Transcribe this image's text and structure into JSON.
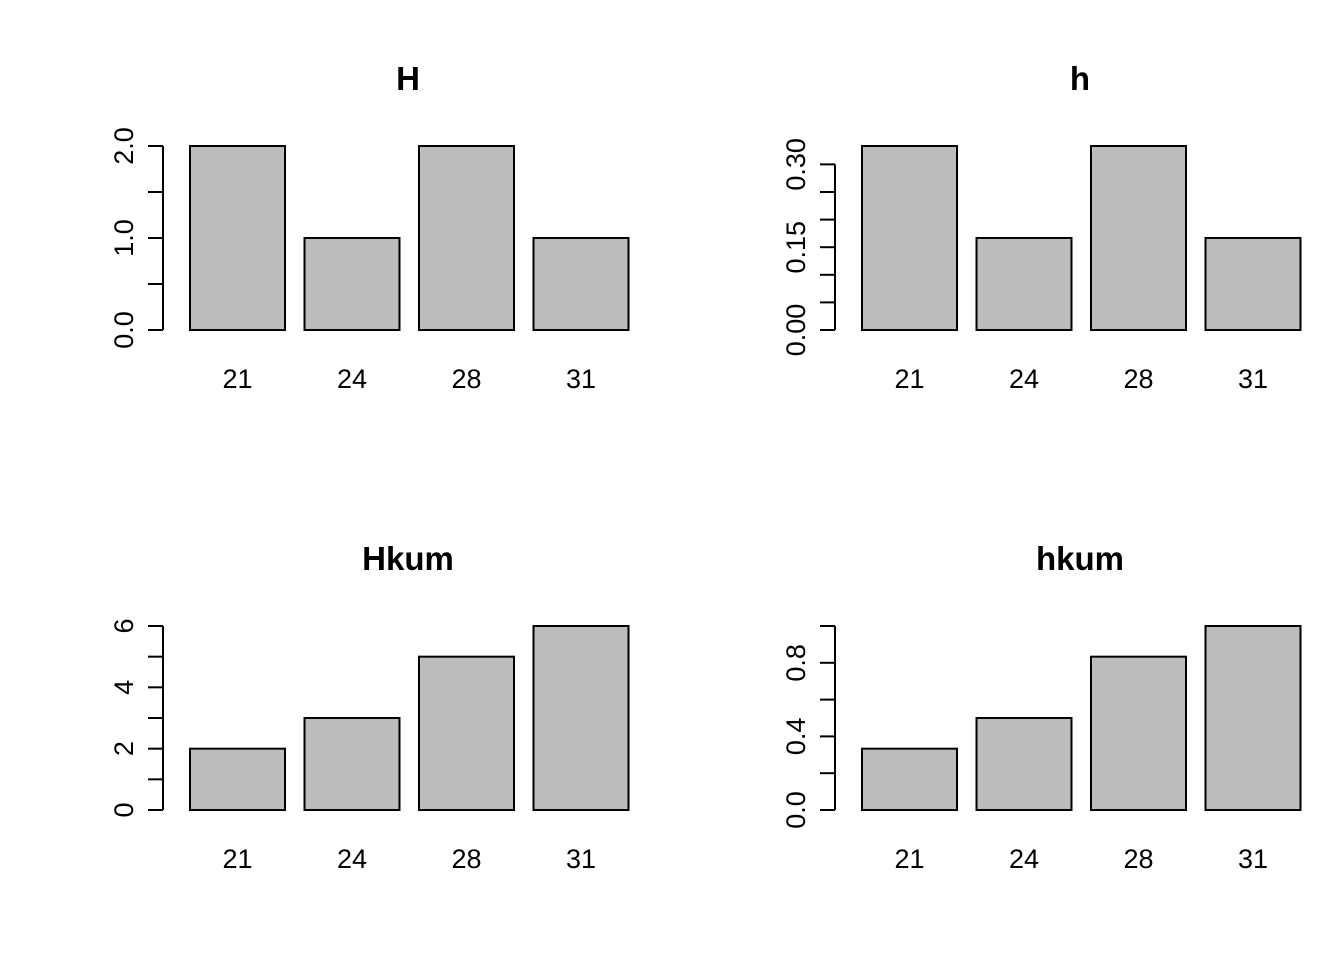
{
  "figure": {
    "background": "#ffffff",
    "text_color": "#000000",
    "bar_fill": "#bcbcbc",
    "bar_border": "#000000",
    "axis_color": "#000000",
    "layout": "2x2 grid of barplots"
  },
  "chart_data": [
    {
      "type": "bar",
      "title": "H",
      "subtitle": "",
      "xlabel": "",
      "ylabel": "",
      "categories": [
        "21",
        "24",
        "28",
        "31"
      ],
      "values": [
        2,
        1,
        2,
        1
      ],
      "ylim": [
        0,
        2
      ],
      "yticks": [
        0,
        0.5,
        1,
        1.5,
        2
      ],
      "ytick_labels": [
        "0.0",
        "",
        "1.0",
        "",
        "2.0"
      ],
      "grid": false,
      "legend": "none",
      "position": "top-left"
    },
    {
      "type": "bar",
      "title": "h",
      "subtitle": "",
      "xlabel": "",
      "ylabel": "",
      "categories": [
        "21",
        "24",
        "28",
        "31"
      ],
      "values": [
        0.3333,
        0.1667,
        0.3333,
        0.1667
      ],
      "ylim": [
        0,
        0.3333
      ],
      "yticks": [
        0,
        0.05,
        0.1,
        0.15,
        0.2,
        0.25,
        0.3
      ],
      "ytick_labels": [
        "0.00",
        "",
        "",
        "0.15",
        "",
        "",
        "0.30"
      ],
      "grid": false,
      "legend": "none",
      "position": "top-right"
    },
    {
      "type": "bar",
      "title": "Hkum",
      "subtitle": "",
      "xlabel": "",
      "ylabel": "",
      "categories": [
        "21",
        "24",
        "28",
        "31"
      ],
      "values": [
        2,
        3,
        5,
        6
      ],
      "ylim": [
        0,
        6
      ],
      "yticks": [
        0,
        1,
        2,
        3,
        4,
        5,
        6
      ],
      "ytick_labels": [
        "0",
        "",
        "2",
        "",
        "4",
        "",
        "6"
      ],
      "grid": false,
      "legend": "none",
      "position": "bottom-left"
    },
    {
      "type": "bar",
      "title": "hkum",
      "subtitle": "",
      "xlabel": "",
      "ylabel": "",
      "categories": [
        "21",
        "24",
        "28",
        "31"
      ],
      "values": [
        0.3333,
        0.5,
        0.8333,
        1
      ],
      "ylim": [
        0,
        1
      ],
      "yticks": [
        0,
        0.2,
        0.4,
        0.6,
        0.8,
        1
      ],
      "ytick_labels": [
        "0.0",
        "",
        "0.4",
        "",
        "0.8",
        ""
      ],
      "grid": false,
      "legend": "none",
      "position": "bottom-right"
    }
  ]
}
